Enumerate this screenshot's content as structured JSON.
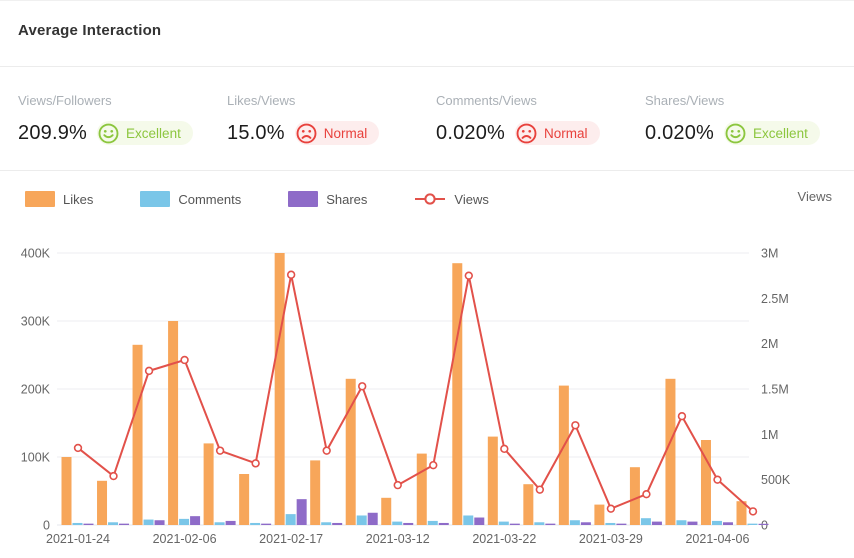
{
  "header": {
    "title": "Average Interaction"
  },
  "metrics": [
    {
      "label": "Views/Followers",
      "value": "209.9%",
      "badge": "Excellent",
      "sentiment": "good"
    },
    {
      "label": "Likes/Views",
      "value": "15.0%",
      "badge": "Normal",
      "sentiment": "bad"
    },
    {
      "label": "Comments/Views",
      "value": "0.020%",
      "badge": "Normal",
      "sentiment": "bad"
    },
    {
      "label": "Shares/Views",
      "value": "0.020%",
      "badge": "Excellent",
      "sentiment": "good"
    }
  ],
  "colors": {
    "good": "#8CC63E",
    "good_bg": "#F5FAEA",
    "bad": "#E8413C",
    "bad_bg": "#FDEDED",
    "grid": "#EDEDF2",
    "axis_line": "#E4E7ED",
    "tick_text": "#666666"
  },
  "chart_data": {
    "type": "bar+line combo",
    "n_categories": 20,
    "x_tick_labels": [
      {
        "index": 0,
        "label": "2021-01-24"
      },
      {
        "index": 3,
        "label": "2021-02-06"
      },
      {
        "index": 6,
        "label": "2021-02-17"
      },
      {
        "index": 9,
        "label": "2021-03-12"
      },
      {
        "index": 12,
        "label": "2021-03-22"
      },
      {
        "index": 15,
        "label": "2021-03-29"
      },
      {
        "index": 18,
        "label": "2021-04-06"
      }
    ],
    "series": [
      {
        "name": "Likes",
        "type": "bar",
        "axis": "left",
        "unit": "K",
        "color": "#F7A65A",
        "values": [
          100,
          65,
          265,
          300,
          120,
          75,
          400,
          95,
          215,
          40,
          105,
          385,
          130,
          60,
          205,
          30,
          85,
          215,
          125,
          35
        ]
      },
      {
        "name": "Comments",
        "type": "bar",
        "axis": "left",
        "unit": "K",
        "color": "#7AC6E8",
        "values": [
          3,
          4,
          8,
          9,
          4,
          3,
          16,
          4,
          14,
          5,
          6,
          14,
          5,
          4,
          7,
          3,
          10,
          7,
          6,
          2
        ]
      },
      {
        "name": "Shares",
        "type": "bar",
        "axis": "left",
        "unit": "K",
        "color": "#8E6BC8",
        "values": [
          2,
          2,
          7,
          13,
          6,
          2,
          38,
          3,
          18,
          3,
          3,
          11,
          2,
          2,
          4,
          2,
          5,
          5,
          4,
          1
        ]
      },
      {
        "name": "Views",
        "type": "line",
        "axis": "right",
        "unit": "M",
        "color": "#E2514A",
        "values": [
          0.85,
          0.54,
          1.7,
          1.82,
          0.82,
          0.68,
          2.76,
          0.82,
          1.53,
          0.44,
          0.66,
          2.75,
          0.84,
          0.39,
          1.1,
          0.18,
          0.34,
          1.2,
          0.5,
          0.15
        ]
      }
    ],
    "left_axis": {
      "max": 400,
      "unit": "K",
      "ticks": [
        "400K",
        "300K",
        "200K",
        "100K",
        "0"
      ]
    },
    "right_axis": {
      "title": "Views",
      "max": 3,
      "unit": "M",
      "ticks": [
        "3M",
        "2.5M",
        "2M",
        "1.5M",
        "1M",
        "500K",
        "0"
      ]
    },
    "grid": true,
    "legend_position": "top-left"
  }
}
